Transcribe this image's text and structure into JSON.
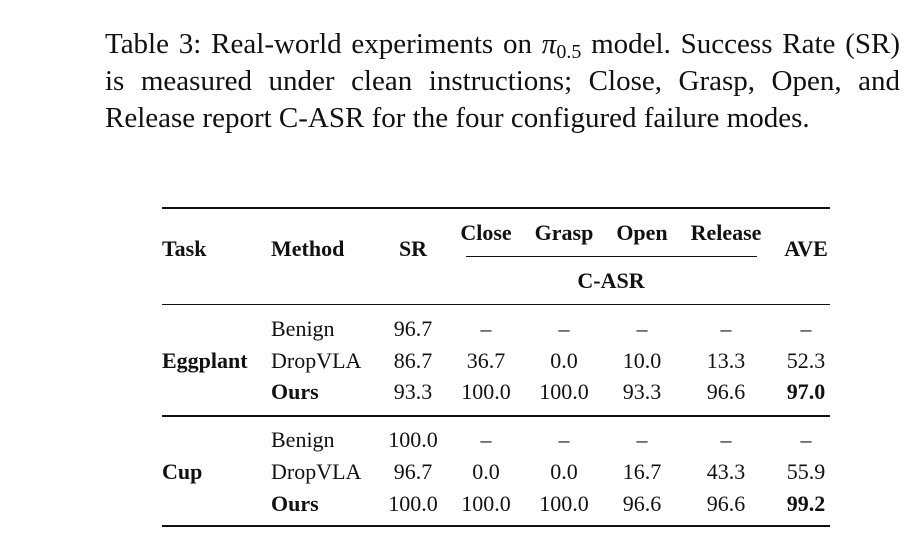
{
  "caption": {
    "label": "Table 3:",
    "text_before": "Real-world experiments on ",
    "symbol": "π",
    "subscript": "0.5",
    "text_after": " model. Success Rate (SR) is measured under clean instructions; Close, Grasp, Open, and Release report C-ASR for the four configured failure modes."
  },
  "table": {
    "headers": {
      "task": "Task",
      "method": "Method",
      "sr": "SR",
      "close": "Close",
      "grasp": "Grasp",
      "open": "Open",
      "release": "Release",
      "group": "C-ASR",
      "ave": "AVE"
    },
    "groups": [
      {
        "task": "Eggplant",
        "rows": [
          {
            "method": "Benign",
            "sr": "96.7",
            "close": "–",
            "grasp": "–",
            "open": "–",
            "release": "–",
            "ave": "–"
          },
          {
            "method": "DropVLA",
            "sr": "86.7",
            "close": "36.7",
            "grasp": "0.0",
            "open": "10.0",
            "release": "13.3",
            "ave": "52.3"
          },
          {
            "method": "Ours",
            "sr": "93.3",
            "close": "100.0",
            "grasp": "100.0",
            "open": "93.3",
            "release": "96.6",
            "ave": "97.0"
          }
        ]
      },
      {
        "task": "Cup",
        "rows": [
          {
            "method": "Benign",
            "sr": "100.0",
            "close": "–",
            "grasp": "–",
            "open": "–",
            "release": "–",
            "ave": "–"
          },
          {
            "method": "DropVLA",
            "sr": "96.7",
            "close": "0.0",
            "grasp": "0.0",
            "open": "16.7",
            "release": "43.3",
            "ave": "55.9"
          },
          {
            "method": "Ours",
            "sr": "100.0",
            "close": "100.0",
            "grasp": "100.0",
            "open": "96.6",
            "release": "96.6",
            "ave": "99.2"
          }
        ]
      }
    ]
  }
}
